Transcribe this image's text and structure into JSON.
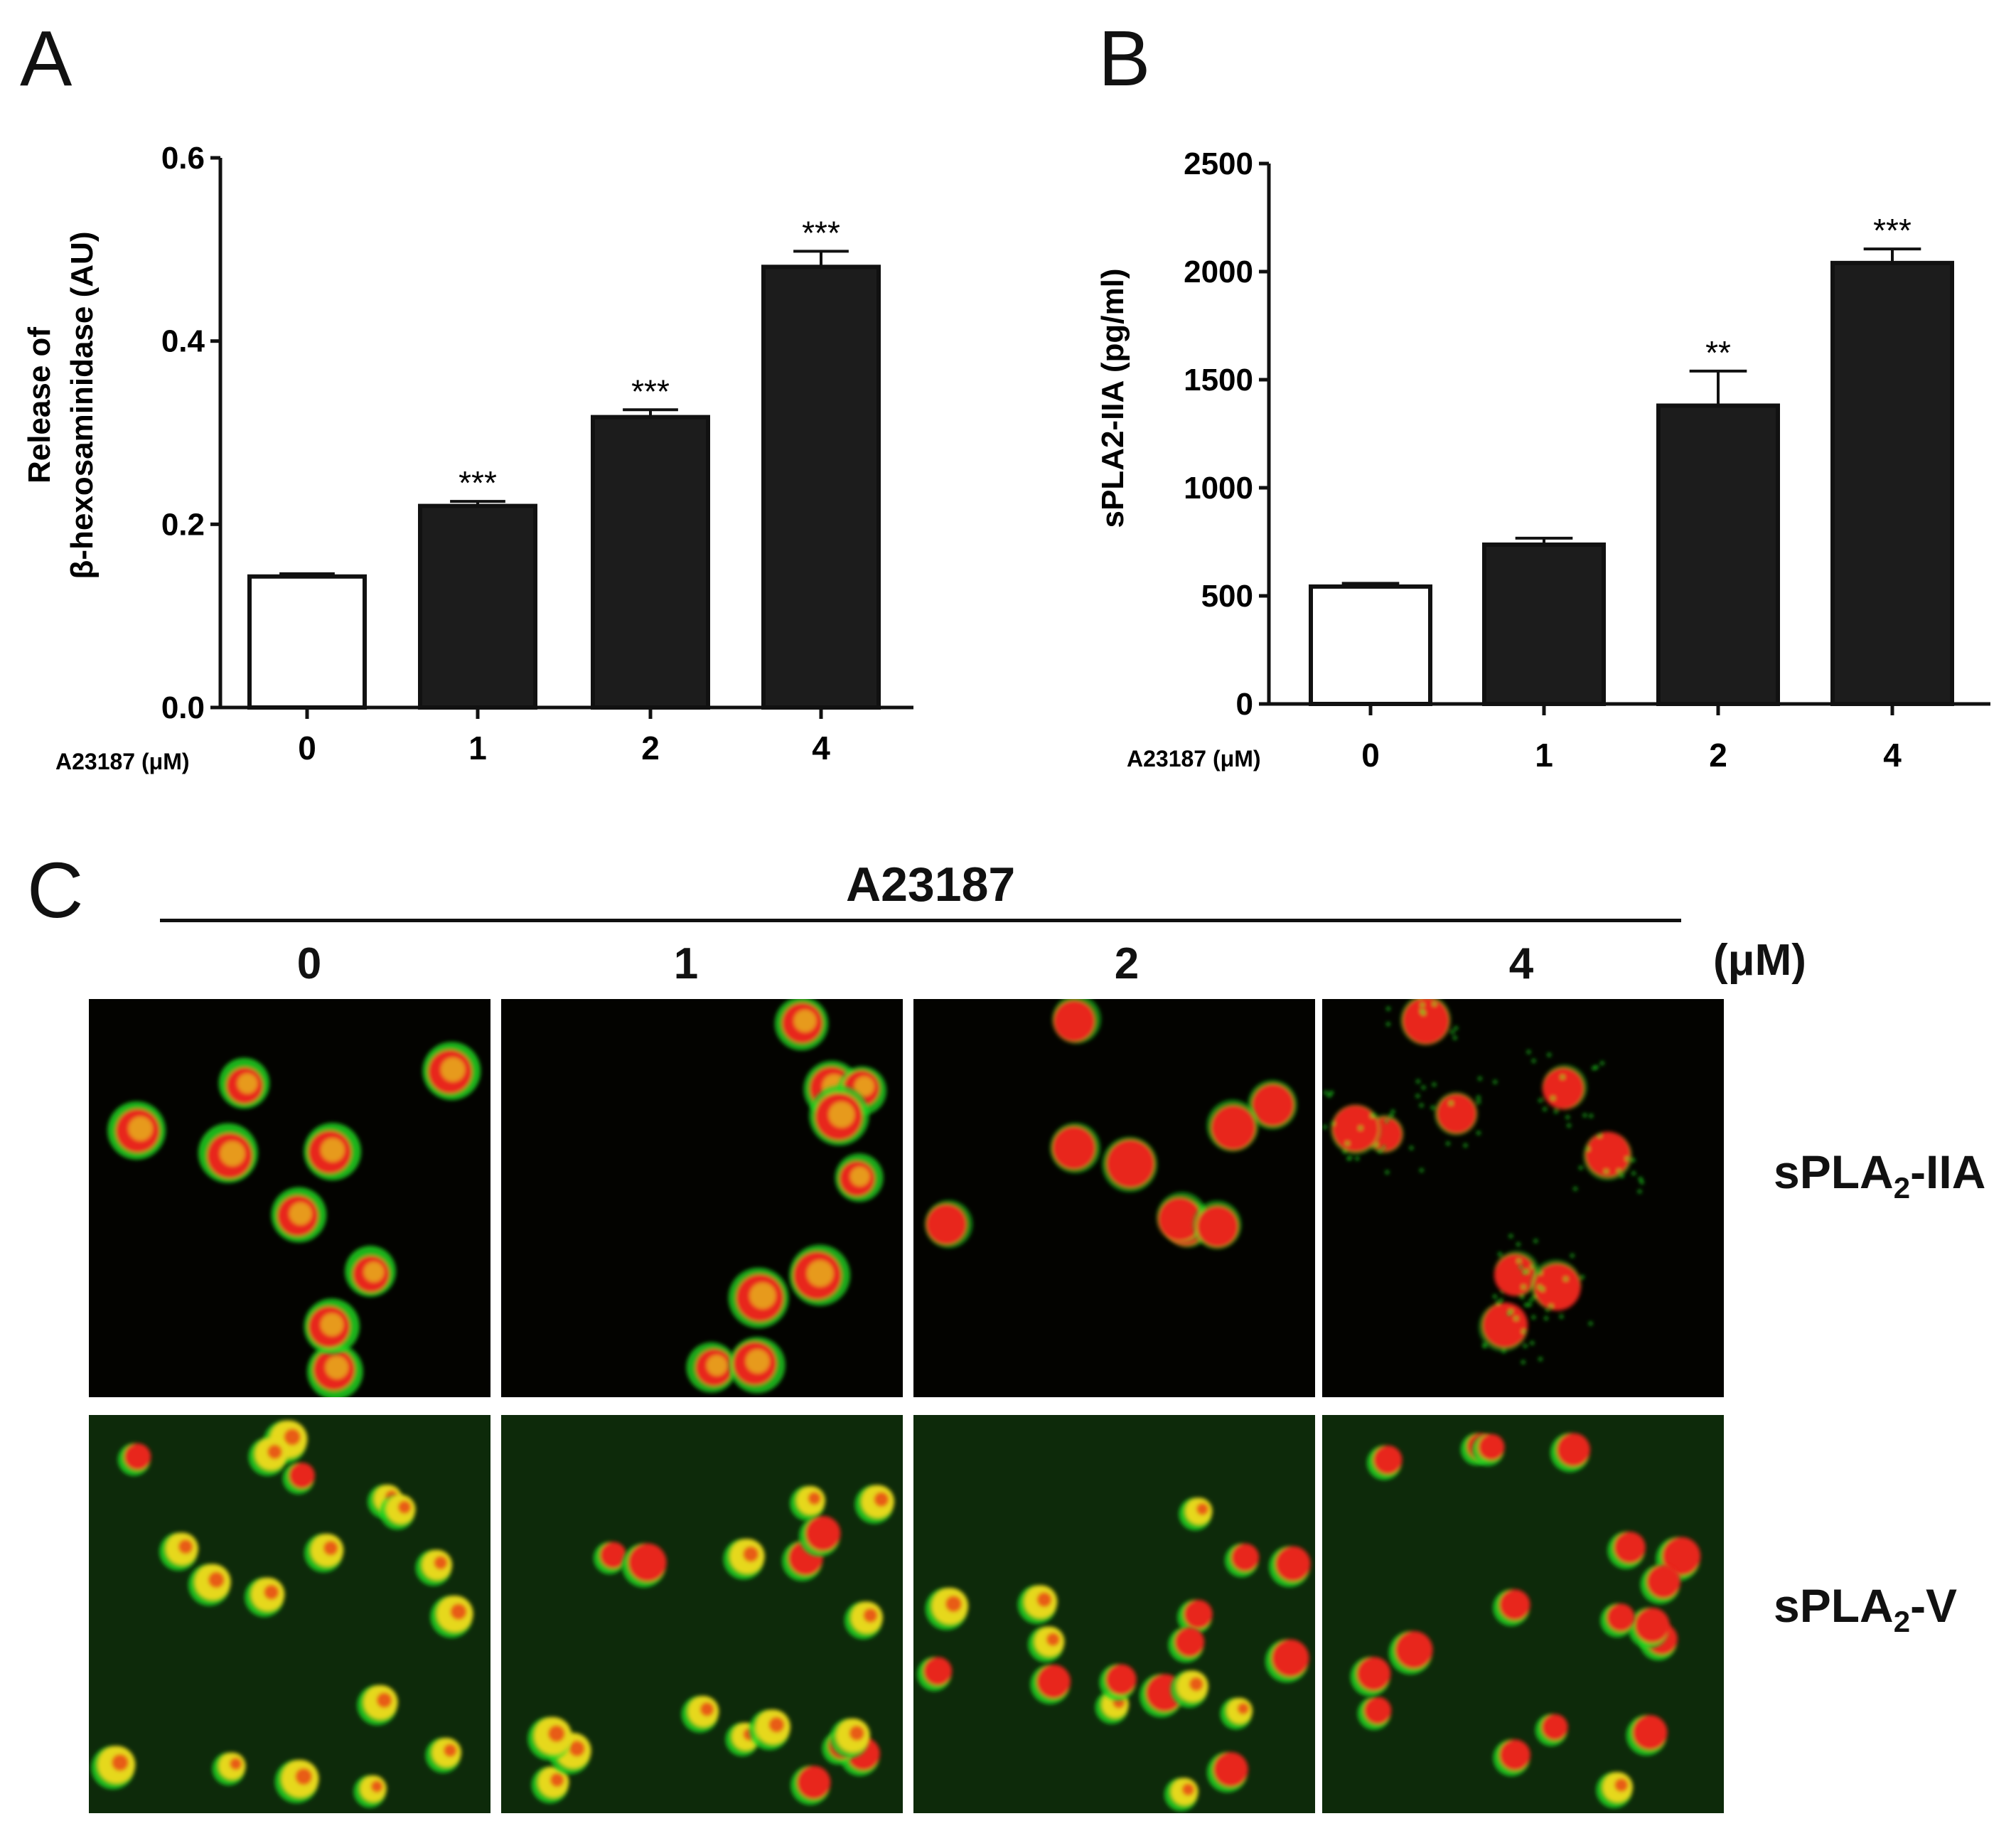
{
  "panels": {
    "a": {
      "letter": "A"
    },
    "b": {
      "letter": "B"
    },
    "c": {
      "letter": "C"
    }
  },
  "chart_data": [
    {
      "type": "bar",
      "panel": "A",
      "ylabel_lines": [
        "Release of",
        "β-hexosaminidase (AU)"
      ],
      "xlabel": "A23187 (μM)",
      "categories": [
        "0",
        "1",
        "2",
        "4"
      ],
      "values": [
        0.143,
        0.22,
        0.317,
        0.481
      ],
      "errors": [
        0.003,
        0.005,
        0.008,
        0.017
      ],
      "significance": [
        "",
        "***",
        "***",
        "***"
      ],
      "bar_fill": [
        "open",
        "filled",
        "filled",
        "filled"
      ],
      "ylim": [
        0,
        0.6
      ],
      "yticks": [
        0.0,
        0.2,
        0.4,
        0.6
      ],
      "ytick_labels": [
        "0.0",
        "0.2",
        "0.4",
        "0.6"
      ]
    },
    {
      "type": "bar",
      "panel": "B",
      "ylabel_lines": [
        "sPLA2-IIA (pg/ml)"
      ],
      "xlabel": "A23187 (μM)",
      "categories": [
        "0",
        "1",
        "2",
        "4"
      ],
      "values": [
        543,
        737,
        1380,
        2040
      ],
      "errors": [
        15,
        30,
        160,
        65
      ],
      "significance": [
        "",
        "",
        "**",
        "***"
      ],
      "bar_fill": [
        "open",
        "filled",
        "filled",
        "filled"
      ],
      "ylim": [
        0,
        2500
      ],
      "yticks": [
        0,
        500,
        1000,
        1500,
        2000,
        2500
      ],
      "ytick_labels": [
        "0",
        "500",
        "1000",
        "1500",
        "2000",
        "2500"
      ]
    }
  ],
  "panel_c": {
    "header": "A23187",
    "unit": "(μM)",
    "columns": [
      "0",
      "1",
      "2",
      "4"
    ],
    "rows": [
      {
        "label_main": "sPLA",
        "label_sub": "2",
        "label_suffix": "-IIA"
      },
      {
        "label_main": "sPLA",
        "label_sub": "2",
        "label_suffix": "-V"
      }
    ],
    "colors": {
      "row1_background": "#030300",
      "row2_background": "#0d2a0a",
      "nucleus": "#e8261a",
      "granule": "#1fd31f",
      "overlap": "#e6d81a"
    }
  }
}
